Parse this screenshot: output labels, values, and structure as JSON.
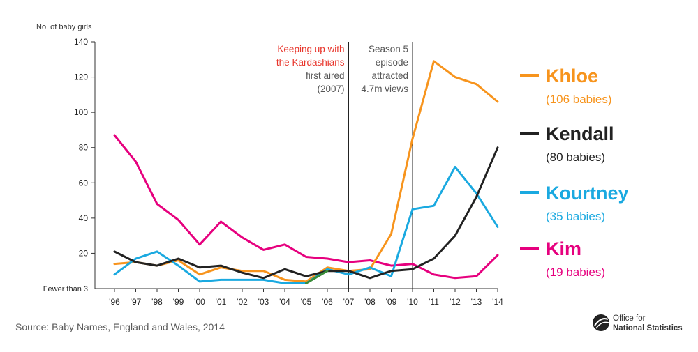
{
  "chart_data": {
    "type": "line",
    "ylabel": "No. of baby girls",
    "ylim": [
      0,
      140
    ],
    "yticks": [
      20,
      40,
      60,
      80,
      100,
      120,
      140
    ],
    "y_floor_label": "Fewer than 3",
    "categories": [
      "'96",
      "'97",
      "'98",
      "'99",
      "'00",
      "'01",
      "'02",
      "'03",
      "'04",
      "'05",
      "'06",
      "'07",
      "'08",
      "'09",
      "'10",
      "'11",
      "'12",
      "'13",
      "'14"
    ],
    "series": [
      {
        "name": "Kim",
        "detail": "(19 babies)",
        "color": "#e6007e",
        "values": [
          87,
          72,
          48,
          39,
          25,
          38,
          29,
          22,
          25,
          18,
          17,
          15,
          16,
          13,
          14,
          8,
          6,
          7,
          19
        ]
      },
      {
        "name": "Khloe",
        "detail": "(106 babies)",
        "color": "#f7941d",
        "values": [
          14,
          15,
          13,
          16,
          8,
          12,
          10,
          10,
          5,
          4,
          12,
          10,
          11,
          31,
          85,
          129,
          120,
          116,
          106
        ]
      },
      {
        "name": "Kourtney",
        "detail": "(35 babies)",
        "color": "#1aa9e0",
        "values": [
          8,
          17,
          21,
          13,
          4,
          5,
          5,
          5,
          3,
          3,
          11,
          8,
          12,
          7,
          45,
          47,
          69,
          54,
          35
        ]
      },
      {
        "name": "Kendall",
        "detail": "(80 babies)",
        "color": "#222222",
        "values": [
          21,
          15,
          13,
          17,
          12,
          13,
          9,
          6,
          11,
          7,
          10,
          10,
          6,
          10,
          11,
          17,
          30,
          52,
          80
        ]
      }
    ],
    "extra_segment": {
      "color": "#3a8d3a",
      "from_index": 9,
      "to_index": 10,
      "values": [
        3,
        10
      ]
    },
    "annotations": [
      {
        "x_index": 11,
        "highlight": "Keeping up with\nthe Kardashians",
        "text": "first aired\n(2007)",
        "highlight_color": "#e8352b"
      },
      {
        "x_index": 14,
        "highlight": "",
        "text": "Season 5\nepisode\nattracted\n4.7m views",
        "highlight_color": ""
      }
    ],
    "legend_position": "right",
    "grid": false
  },
  "source": "Source: Baby Names, England and Wales, 2014",
  "logo": {
    "line1": "Office for",
    "line2": "National Statistics"
  }
}
